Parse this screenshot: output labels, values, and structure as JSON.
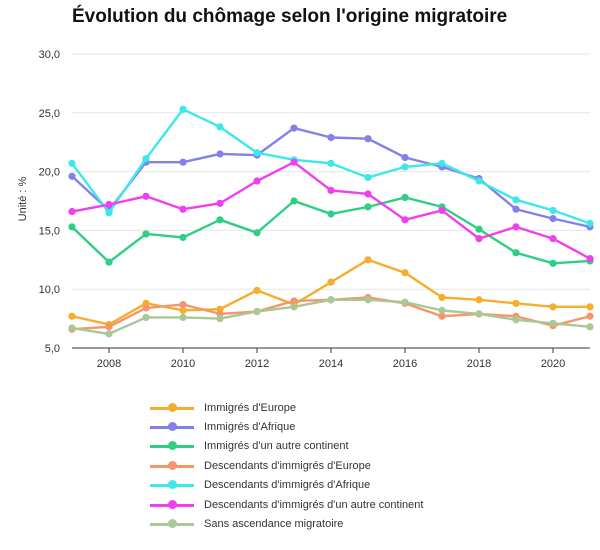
{
  "chart_data": {
    "type": "line",
    "title": "Évolution du chômage selon l'origine migratoire",
    "ylabel": "Unité : %",
    "xlabel": "",
    "ylim": [
      5,
      30
    ],
    "xlim": [
      2007,
      2021
    ],
    "yticks": [
      "5,0",
      "10,0",
      "15,0",
      "20,0",
      "25,0",
      "30,0"
    ],
    "xticks": [
      "2008",
      "2010",
      "2012",
      "2014",
      "2016",
      "2018",
      "2020"
    ],
    "grid": "horizontal",
    "legend_position": "bottom",
    "x": [
      2007,
      2008,
      2009,
      2010,
      2011,
      2012,
      2013,
      2014,
      2015,
      2016,
      2017,
      2018,
      2019,
      2020,
      2021
    ],
    "series": [
      {
        "name": "Immigrés d'Europe",
        "color": "#f5ad2b",
        "values": [
          7.7,
          7.0,
          8.8,
          8.2,
          8.3,
          9.9,
          8.7,
          10.6,
          12.5,
          11.4,
          9.3,
          9.1,
          8.8,
          8.5,
          8.5
        ]
      },
      {
        "name": "Immigrés d'Afrique",
        "color": "#8480ea",
        "values": [
          19.6,
          16.7,
          20.8,
          20.8,
          21.5,
          21.4,
          23.7,
          22.9,
          22.8,
          21.2,
          20.4,
          19.4,
          16.8,
          16.0,
          15.3
        ]
      },
      {
        "name": "Immigrés d'un autre continent",
        "color": "#2ecf83",
        "values": [
          15.3,
          12.3,
          14.7,
          14.4,
          15.9,
          14.8,
          17.5,
          16.4,
          17.0,
          17.8,
          17.0,
          15.1,
          13.1,
          12.2,
          12.4
        ]
      },
      {
        "name": "Descendants d'immigrés d'Europe",
        "color": "#f5966a",
        "values": [
          6.6,
          6.8,
          8.4,
          8.7,
          7.9,
          8.1,
          9.0,
          9.1,
          9.3,
          8.8,
          7.7,
          7.9,
          7.7,
          6.9,
          7.7
        ]
      },
      {
        "name": "Descendants d'immigrés d'Afrique",
        "color": "#3de8e8",
        "values": [
          20.7,
          16.5,
          21.1,
          25.3,
          23.8,
          21.6,
          21.0,
          20.7,
          19.5,
          20.4,
          20.7,
          19.2,
          17.6,
          16.7,
          15.6
        ]
      },
      {
        "name": "Descendants d'immigrés d'un autre continent",
        "color": "#f03ef0",
        "values": [
          16.6,
          17.2,
          17.9,
          16.8,
          17.3,
          19.2,
          20.8,
          18.4,
          18.1,
          15.9,
          16.7,
          14.3,
          15.3,
          14.3,
          12.6
        ]
      },
      {
        "name": "Sans ascendance migratoire",
        "color": "#a8c896",
        "values": [
          6.7,
          6.2,
          7.6,
          7.6,
          7.5,
          8.1,
          8.5,
          9.1,
          9.1,
          8.9,
          8.2,
          7.9,
          7.4,
          7.1,
          6.8
        ]
      }
    ]
  }
}
